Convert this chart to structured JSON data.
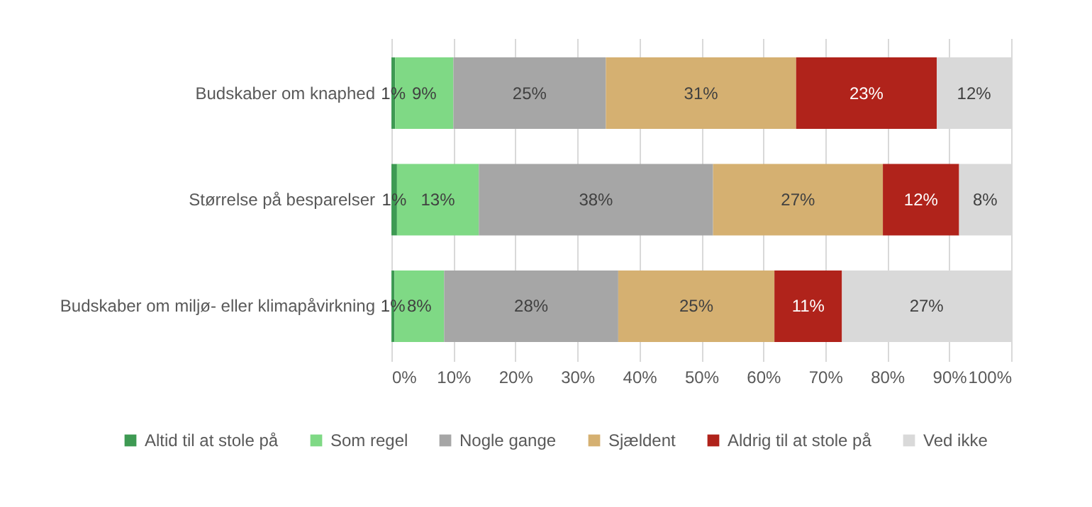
{
  "chart_data": {
    "type": "bar",
    "orientation": "horizontal",
    "stacked": true,
    "categories": [
      "Budskaber om knaphed",
      "Størrelse på besparelser",
      "Budskaber om miljø- eller klimapåvirkning"
    ],
    "series": [
      {
        "name": "Altid til at stole på",
        "color": "#3e9a53",
        "values": [
          0.6,
          0.9,
          0.5
        ],
        "value_labels": [
          "1%",
          "1%",
          "1%"
        ]
      },
      {
        "name": "Som regel",
        "color": "#7fd985",
        "values": [
          9.4,
          13.2,
          8.0
        ],
        "value_labels": [
          "9%",
          "13%",
          "8%"
        ]
      },
      {
        "name": "Nogle gange",
        "color": "#a6a6a6",
        "values": [
          24.6,
          37.8,
          28.1
        ],
        "value_labels": [
          "25%",
          "38%",
          "28%"
        ]
      },
      {
        "name": "Sjældent",
        "color": "#d5b071",
        "values": [
          30.7,
          27.4,
          25.2
        ],
        "value_labels": [
          "31%",
          "27%",
          "25%"
        ]
      },
      {
        "name": "Aldrig til at stole på",
        "color": "#b0231b",
        "values": [
          22.7,
          12.3,
          10.9
        ],
        "value_labels": [
          "23%",
          "12%",
          "11%"
        ]
      },
      {
        "name": "Ved ikke",
        "color": "#d9d9d9",
        "values": [
          12.0,
          8.4,
          27.3
        ],
        "value_labels": [
          "12%",
          "8%",
          "27%"
        ]
      }
    ],
    "xlim": [
      0,
      100
    ],
    "xticks": [
      {
        "value": 0,
        "label": "0%"
      },
      {
        "value": 10,
        "label": "10%"
      },
      {
        "value": 20,
        "label": "20%"
      },
      {
        "value": 30,
        "label": "30%"
      },
      {
        "value": 40,
        "label": "40%"
      },
      {
        "value": 50,
        "label": "50%"
      },
      {
        "value": 60,
        "label": "60%"
      },
      {
        "value": 70,
        "label": "70%"
      },
      {
        "value": 80,
        "label": "80%"
      },
      {
        "value": 90,
        "label": "90%"
      },
      {
        "value": 100,
        "label": "100%"
      }
    ],
    "grid": "x",
    "legend": "bottom"
  }
}
